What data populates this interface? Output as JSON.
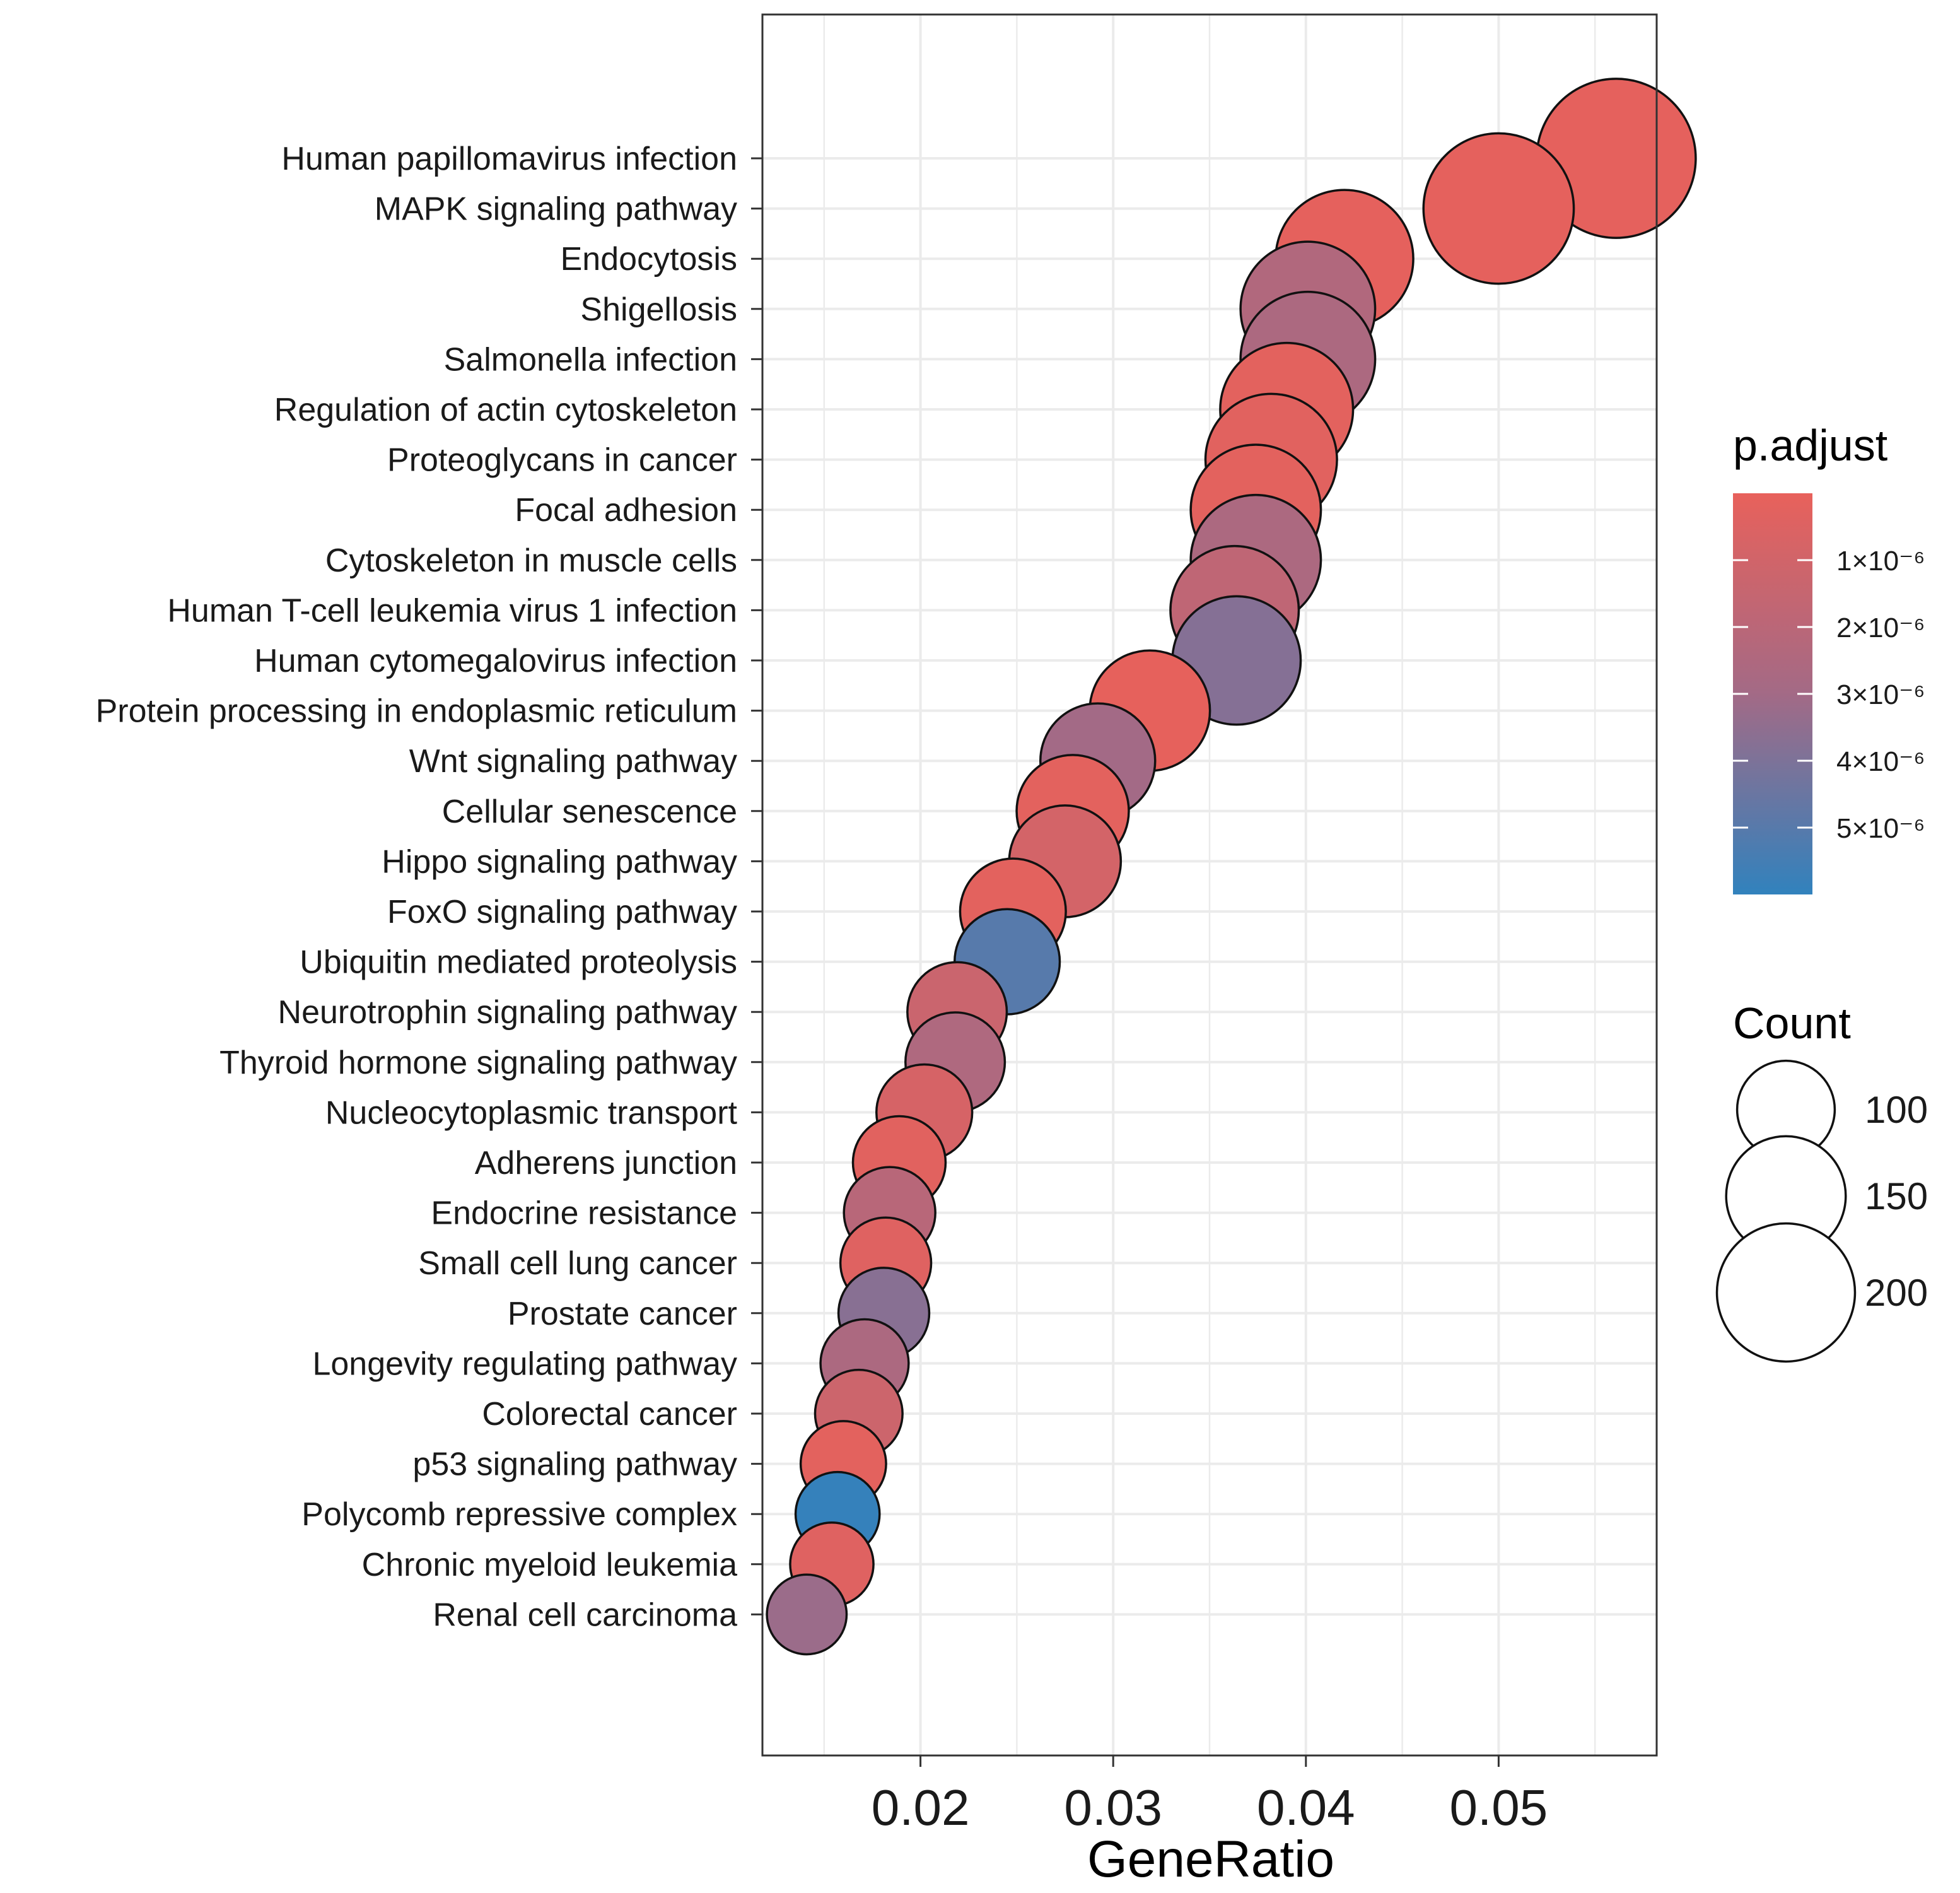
{
  "chart_data": {
    "type": "scatter",
    "xlabel": "GeneRatio",
    "ylabel": "",
    "xlim": [
      0.0118,
      0.0582
    ],
    "xticks": [
      0.02,
      0.03,
      0.04,
      0.05
    ],
    "xtick_labels": [
      "0.02",
      "0.03",
      "0.04",
      "0.05"
    ],
    "grid": true,
    "categories": [
      "Human papillomavirus infection",
      "MAPK signaling pathway",
      "Endocytosis",
      "Shigellosis",
      "Salmonella infection",
      "Regulation of actin cytoskeleton",
      "Proteoglycans in cancer",
      "Focal adhesion",
      "Cytoskeleton in muscle cells",
      "Human T-cell leukemia virus 1 infection",
      "Human cytomegalovirus infection",
      "Protein processing in endoplasmic reticulum",
      "Wnt signaling pathway",
      "Cellular senescence",
      "Hippo signaling pathway",
      "FoxO signaling pathway",
      "Ubiquitin mediated proteolysis",
      "Neurotrophin signaling pathway",
      "Thyroid hormone signaling pathway",
      "Nucleocytoplasmic transport",
      "Adherens junction",
      "Endocrine resistance",
      "Small cell lung cancer",
      "Prostate cancer",
      "Longevity regulating pathway",
      "Colorectal cancer",
      "p53 signaling pathway",
      "Polycomb repressive complex",
      "Chronic myeloid leukemia",
      "Renal cell carcinoma"
    ],
    "gene_ratio": [
      0.0561,
      0.05,
      0.042,
      0.0401,
      0.0401,
      0.039,
      0.0382,
      0.0374,
      0.0374,
      0.0363,
      0.0364,
      0.0319,
      0.0292,
      0.0279,
      0.0275,
      0.0248,
      0.0245,
      0.0219,
      0.0218,
      0.0202,
      0.0189,
      0.0184,
      0.0182,
      0.0181,
      0.0171,
      0.0168,
      0.016,
      0.0157,
      0.0154,
      0.0141
    ],
    "count": [
      215,
      192,
      161,
      154,
      154,
      150,
      147,
      144,
      144,
      140,
      140,
      123,
      112,
      107,
      106,
      95,
      94,
      84,
      84,
      78,
      73,
      71,
      70,
      70,
      66,
      65,
      62,
      60,
      59,
      54
    ],
    "p_adjust": [
      1.2e-07,
      1.5e-07,
      1.5e-07,
      2.4e-06,
      2.6e-06,
      2e-07,
      3e-07,
      2e-07,
      2.6e-06,
      1.8e-06,
      3.8e-06,
      1e-07,
      3e-06,
      2e-07,
      9e-07,
      2e-07,
      5e-06,
      1.3e-06,
      2.5e-06,
      8e-07,
      3e-07,
      2.1e-06,
      4e-07,
      3.7e-06,
      2.6e-06,
      1.2e-06,
      2e-07,
      5.9e-06,
      4e-07,
      3.2e-06
    ],
    "color_legend": {
      "title": "p.adjust",
      "range": [
        0,
        6e-06
      ],
      "low_color": "#e8615b",
      "mid_color": "#a36a86",
      "high_color": "#3182bd",
      "ticks": [
        1e-06,
        2e-06,
        3e-06,
        4e-06,
        5e-06
      ],
      "tick_labels": [
        "1×10⁻⁶",
        "2×10⁻⁶",
        "3×10⁻⁶",
        "4×10⁻⁶",
        "5×10⁻⁶"
      ]
    },
    "size_legend": {
      "title": "Count",
      "values": [
        100,
        150,
        200
      ],
      "labels": [
        "100",
        "150",
        "200"
      ]
    }
  }
}
